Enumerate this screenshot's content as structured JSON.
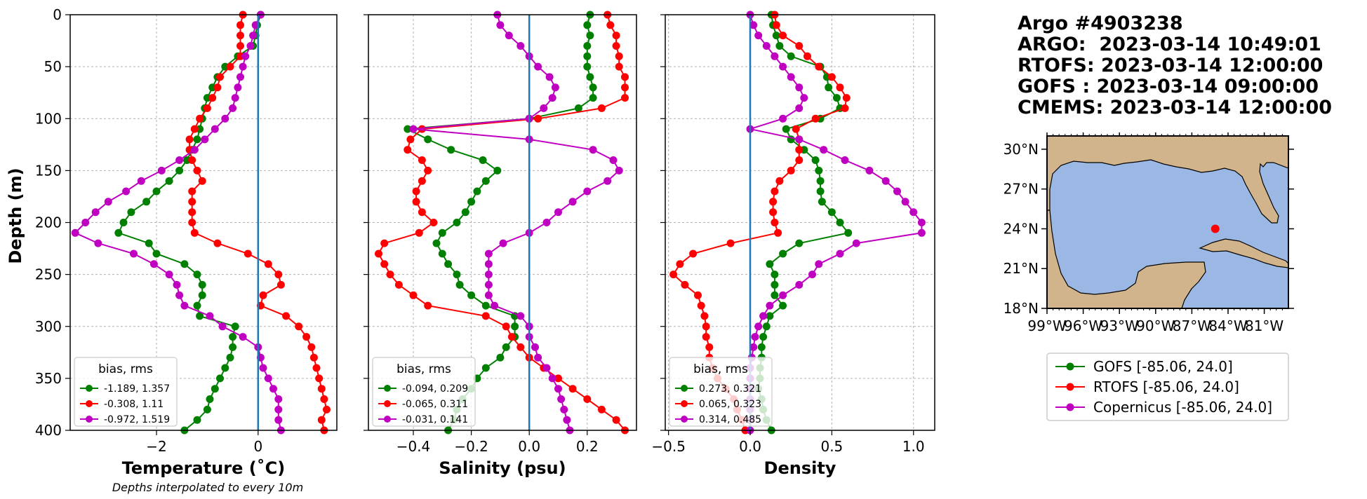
{
  "colors": {
    "GOFS": "#008000",
    "RTOFS": "#ff0000",
    "Copernicus": "#c000c0",
    "zero_line": "#1f77b4",
    "land": "#d2b48c",
    "ocean": "#9ab8e3",
    "argo_point": "#ff0000"
  },
  "header": {
    "lines": [
      "Argo #4903238",
      "ARGO:  2023-03-14 10:49:01",
      "RTOFS: 2023-03-14 12:00:00",
      "GOFS : 2023-03-14 09:00:00",
      "CMEMS: 2023-03-14 12:00:00"
    ]
  },
  "y_axis": {
    "label": "Depth (m)",
    "ticks": [
      "0",
      "50",
      "100",
      "150",
      "200",
      "250",
      "300",
      "350",
      "400"
    ]
  },
  "footnote": "Depths interpolated to every 10m",
  "map": {
    "lat_ticks": [
      "30°N",
      "27°N",
      "24°N",
      "21°N",
      "18°N"
    ],
    "lon_ticks": [
      "99°W",
      "96°W",
      "93°W",
      "90°W",
      "87°W",
      "84°W",
      "81°W"
    ],
    "lon_range": [
      -99,
      -79
    ],
    "lat_range": [
      18,
      31
    ],
    "point": {
      "lon": -85.06,
      "lat": 24.0
    }
  },
  "main_legend": [
    "GOFS [-85.06, 24.0]",
    "RTOFS [-85.06, 24.0]",
    "Copernicus [-85.06, 24.0]"
  ],
  "chart_data": [
    {
      "type": "line",
      "xlabel": "Temperature (˚C)",
      "ylabel": "Depth (m)",
      "xlim": [
        -3.7,
        1.55
      ],
      "ylim": [
        400,
        0
      ],
      "x_ticks": [
        -2,
        0
      ],
      "x_tick_labels": [
        "−2",
        "0"
      ],
      "grid": true,
      "legend_placement": "lower left",
      "legend_title": "bias, rms",
      "depths": [
        0,
        10,
        20,
        30,
        40,
        50,
        60,
        70,
        80,
        90,
        100,
        110,
        120,
        130,
        140,
        150,
        160,
        170,
        180,
        190,
        200,
        210,
        220,
        230,
        240,
        250,
        260,
        270,
        280,
        290,
        300,
        310,
        320,
        330,
        340,
        350,
        360,
        370,
        380,
        390,
        400
      ],
      "series": [
        {
          "key": "GOFS",
          "legend": "-1.189, 1.357",
          "values": [
            0.05,
            -0.02,
            -0.05,
            -0.1,
            -0.4,
            -0.65,
            -0.8,
            -0.9,
            -1.0,
            -1.05,
            -1.1,
            -1.15,
            -1.2,
            -1.3,
            -1.4,
            -1.55,
            -1.75,
            -2.0,
            -2.2,
            -2.5,
            -2.65,
            -2.75,
            -2.15,
            -2.0,
            -1.45,
            -1.2,
            -1.1,
            -1.1,
            -1.2,
            -1.15,
            -0.45,
            -0.5,
            -0.5,
            -0.55,
            -0.65,
            -0.75,
            -0.85,
            -0.95,
            -1.0,
            -1.2,
            -1.45
          ]
        },
        {
          "key": "RTOFS",
          "legend": "-0.308, 1.11",
          "values": [
            -0.3,
            -0.35,
            -0.35,
            -0.35,
            -0.35,
            -0.55,
            -0.75,
            -0.8,
            -0.9,
            -1.0,
            -1.15,
            -1.25,
            -1.35,
            -1.35,
            -1.3,
            -1.2,
            -1.1,
            -1.3,
            -1.3,
            -1.3,
            -1.3,
            -1.25,
            -0.8,
            -0.2,
            0.2,
            0.4,
            0.45,
            0.1,
            0.05,
            0.55,
            0.8,
            0.95,
            1.05,
            1.1,
            1.15,
            1.2,
            1.25,
            1.3,
            1.35,
            1.25,
            1.3
          ]
        },
        {
          "key": "Copernicus",
          "legend": "-0.972, 1.519",
          "values": [
            0.05,
            -0.05,
            -0.1,
            -0.15,
            -0.25,
            -0.3,
            -0.35,
            -0.4,
            -0.45,
            -0.5,
            -0.65,
            -0.85,
            -1.05,
            -1.25,
            -1.55,
            -1.9,
            -2.3,
            -2.6,
            -2.95,
            -3.2,
            -3.4,
            -3.6,
            -3.15,
            -2.45,
            -2.05,
            -1.75,
            -1.6,
            -1.55,
            -1.45,
            -0.95,
            -0.7,
            -0.3,
            0.0,
            0.05,
            0.1,
            0.2,
            0.3,
            0.4,
            0.4,
            0.4,
            0.45
          ]
        }
      ]
    },
    {
      "type": "line",
      "xlabel": "Salinity (psu)",
      "xlim": [
        -0.555,
        0.37
      ],
      "ylim": [
        400,
        0
      ],
      "x_ticks": [
        -0.4,
        -0.2,
        0.0,
        0.2
      ],
      "x_tick_labels": [
        "−0.4",
        "−0.2",
        "0.0",
        "0.2"
      ],
      "grid": true,
      "legend_placement": "lower left",
      "legend_title": "bias, rms",
      "depths": [
        0,
        10,
        20,
        30,
        40,
        50,
        60,
        70,
        80,
        90,
        100,
        110,
        120,
        130,
        140,
        150,
        160,
        170,
        180,
        190,
        200,
        210,
        220,
        230,
        240,
        250,
        260,
        270,
        280,
        290,
        300,
        310,
        320,
        330,
        340,
        350,
        360,
        370,
        380,
        390,
        400
      ],
      "series": [
        {
          "key": "GOFS",
          "legend": "-0.094, 0.209",
          "values": [
            0.21,
            0.2,
            0.21,
            0.2,
            0.2,
            0.2,
            0.21,
            0.22,
            0.22,
            0.17,
            -0.0,
            -0.42,
            -0.35,
            -0.27,
            -0.16,
            -0.11,
            -0.15,
            -0.18,
            -0.2,
            -0.22,
            -0.25,
            -0.3,
            -0.32,
            -0.3,
            -0.28,
            -0.25,
            -0.24,
            -0.2,
            -0.15,
            -0.05,
            -0.05,
            -0.05,
            -0.08,
            -0.1,
            -0.15,
            -0.18,
            -0.2,
            -0.23,
            -0.25,
            -0.26,
            -0.28
          ]
        },
        {
          "key": "RTOFS",
          "legend": "-0.065, 0.311",
          "values": [
            0.27,
            0.28,
            0.3,
            0.3,
            0.31,
            0.31,
            0.33,
            0.33,
            0.33,
            0.25,
            0.03,
            -0.37,
            -0.41,
            -0.42,
            -0.37,
            -0.35,
            -0.37,
            -0.39,
            -0.39,
            -0.37,
            -0.33,
            -0.38,
            -0.5,
            -0.52,
            -0.5,
            -0.48,
            -0.45,
            -0.4,
            -0.35,
            -0.15,
            -0.08,
            -0.06,
            -0.03,
            0.0,
            0.05,
            0.1,
            0.15,
            0.2,
            0.25,
            0.3,
            0.33
          ]
        },
        {
          "key": "Copernicus",
          "legend": "-0.031, 0.141",
          "values": [
            -0.11,
            -0.1,
            -0.07,
            -0.03,
            0.0,
            0.03,
            0.07,
            0.09,
            0.08,
            0.05,
            0.0,
            -0.4,
            0.0,
            0.22,
            0.29,
            0.31,
            0.27,
            0.2,
            0.15,
            0.1,
            0.06,
            0.0,
            -0.09,
            -0.14,
            -0.14,
            -0.14,
            -0.14,
            -0.14,
            -0.12,
            -0.03,
            0.0,
            0.0,
            0.02,
            0.03,
            0.06,
            0.08,
            0.1,
            0.11,
            0.12,
            0.13,
            0.14
          ]
        }
      ]
    },
    {
      "type": "line",
      "xlabel": "Density",
      "xlim": [
        -0.52,
        1.13
      ],
      "ylim": [
        400,
        0
      ],
      "x_ticks": [
        -0.5,
        0.0,
        0.5,
        1.0
      ],
      "x_tick_labels": [
        "−0.5",
        "0.0",
        "0.5",
        "1.0"
      ],
      "grid": true,
      "legend_placement": "lower left",
      "legend_title": "bias, rms",
      "depths": [
        0,
        10,
        20,
        30,
        40,
        50,
        60,
        70,
        80,
        90,
        100,
        110,
        120,
        130,
        140,
        150,
        160,
        170,
        180,
        190,
        200,
        210,
        220,
        230,
        240,
        250,
        260,
        270,
        280,
        290,
        300,
        310,
        320,
        330,
        340,
        350,
        360,
        370,
        380,
        390,
        400
      ],
      "series": [
        {
          "key": "GOFS",
          "legend": "0.273, 0.321",
          "values": [
            0.13,
            0.14,
            0.16,
            0.18,
            0.25,
            0.43,
            0.47,
            0.48,
            0.53,
            0.55,
            0.43,
            0.22,
            0.25,
            0.33,
            0.4,
            0.42,
            0.43,
            0.43,
            0.44,
            0.5,
            0.55,
            0.6,
            0.3,
            0.2,
            0.12,
            0.15,
            0.15,
            0.15,
            0.2,
            0.12,
            0.1,
            0.08,
            0.07,
            0.07,
            0.06,
            0.06,
            0.05,
            0.07,
            0.08,
            0.1,
            0.13
          ]
        },
        {
          "key": "RTOFS",
          "legend": "0.065, 0.323",
          "values": [
            0.15,
            0.16,
            0.2,
            0.3,
            0.35,
            0.42,
            0.5,
            0.55,
            0.59,
            0.58,
            0.4,
            0.28,
            0.3,
            0.3,
            0.3,
            0.25,
            0.18,
            0.15,
            0.14,
            0.14,
            0.15,
            0.17,
            -0.12,
            -0.35,
            -0.43,
            -0.47,
            -0.4,
            -0.32,
            -0.3,
            -0.28,
            -0.27,
            -0.27,
            -0.25,
            -0.25,
            -0.23,
            -0.2,
            -0.15,
            -0.1,
            -0.08,
            -0.05,
            -0.03
          ]
        },
        {
          "key": "Copernicus",
          "legend": "0.314, 0.485",
          "values": [
            0.0,
            0.02,
            0.05,
            0.1,
            0.15,
            0.2,
            0.25,
            0.3,
            0.33,
            0.3,
            0.2,
            0.0,
            0.3,
            0.45,
            0.58,
            0.73,
            0.83,
            0.9,
            0.95,
            1.0,
            1.05,
            1.05,
            0.65,
            0.55,
            0.42,
            0.38,
            0.3,
            0.2,
            0.12,
            0.08,
            0.05,
            0.03,
            0.02,
            0.01,
            0.0,
            0.0,
            0.0,
            0.0,
            0.0,
            0.0,
            0.0
          ]
        }
      ]
    }
  ]
}
